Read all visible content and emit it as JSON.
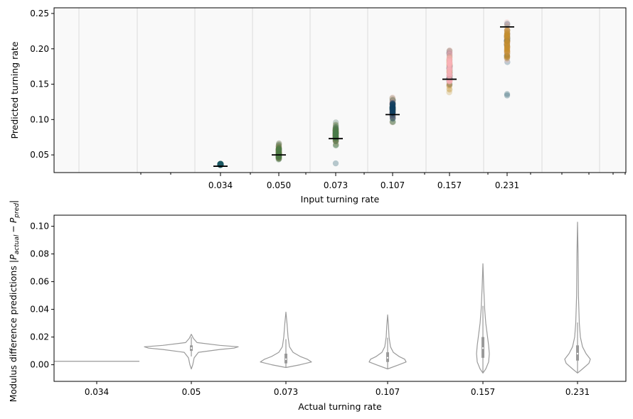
{
  "chart_data": [
    {
      "type": "scatter",
      "xlabel": "Input turning rate",
      "ylabel": "Predicted turning rate",
      "ylim": [
        0.025,
        0.258
      ],
      "yticks": [
        "0.05",
        "0.10",
        "0.15",
        "0.20",
        "0.25"
      ],
      "ytick_values": [
        0.05,
        0.1,
        0.15,
        0.2,
        0.25
      ],
      "categories": [
        "0.034",
        "0.050",
        "0.073",
        "0.107",
        "0.157",
        "0.231"
      ],
      "background": "#f9f9f9",
      "grid": "vertical",
      "medians": [
        0.034,
        0.05,
        0.073,
        0.107,
        0.157,
        0.231
      ],
      "clusters": [
        {
          "x": "0.034",
          "y_min": 0.035,
          "y_max": 0.038,
          "outliers": [],
          "colors": [
            "#1d5a66",
            "#2a6a62"
          ]
        },
        {
          "x": "0.050",
          "y_min": 0.036,
          "y_max": 0.07,
          "outliers": [],
          "colors": [
            "#4e7a45",
            "#e4956a",
            "#3f7252"
          ]
        },
        {
          "x": "0.073",
          "y_min": 0.06,
          "y_max": 0.099,
          "outliers": [
            0.038
          ],
          "colors": [
            "#4a7a4a",
            "#e8a36e",
            "#3f6a55"
          ]
        },
        {
          "x": "0.107",
          "y_min": 0.087,
          "y_max": 0.14,
          "outliers": [],
          "colors": [
            "#10405f",
            "#3e7a4b",
            "#f5b0a8"
          ]
        },
        {
          "x": "0.157",
          "y_min": 0.116,
          "y_max": 0.224,
          "outliers": [],
          "colors": [
            "#fbb3b8",
            "#123f5c",
            "#c79a3e"
          ]
        },
        {
          "x": "0.231",
          "y_min": 0.17,
          "y_max": 0.248,
          "outliers": [
            0.134,
            0.136
          ],
          "colors": [
            "#c38d2c",
            "#f7b6b4",
            "#1d4f6a"
          ]
        }
      ]
    },
    {
      "type": "violin",
      "xlabel": "Actual turning rate",
      "ylabel": "Modulus difference predictions |P_actual − P_pred|",
      "ylabel_main": "Modulus difference predictions",
      "ylabel_abs_open": "|",
      "ylabel_P": "P",
      "ylabel_sub_actual": "actual",
      "ylabel_minus": "−",
      "ylabel_sub_pred": "pred",
      "ylabel_abs_close": "|",
      "ylim": [
        -0.012,
        0.108
      ],
      "yticks": [
        "0.00",
        "0.02",
        "0.04",
        "0.06",
        "0.08",
        "0.10"
      ],
      "ytick_values": [
        0.0,
        0.02,
        0.04,
        0.06,
        0.08,
        0.1
      ],
      "categories": [
        "0.034",
        "0.05",
        "0.073",
        "0.107",
        "0.157",
        "0.231"
      ],
      "color": "#9a9a9a",
      "violins": [
        {
          "category": "0.034",
          "min": 0.0025,
          "max": 0.0025,
          "q1": 0.0025,
          "median": 0.0025,
          "q3": 0.0025
        },
        {
          "category": "0.05",
          "min": -0.003,
          "max": 0.022,
          "q1": 0.01,
          "median": 0.012,
          "q3": 0.014
        },
        {
          "category": "0.073",
          "min": -0.002,
          "max": 0.038,
          "q1": 0.001,
          "median": 0.004,
          "q3": 0.008
        },
        {
          "category": "0.107",
          "min": -0.003,
          "max": 0.036,
          "q1": 0.002,
          "median": 0.005,
          "q3": 0.009
        },
        {
          "category": "0.157",
          "min": -0.006,
          "max": 0.073,
          "q1": 0.005,
          "median": 0.012,
          "q3": 0.02
        },
        {
          "category": "0.231",
          "min": -0.006,
          "max": 0.103,
          "q1": 0.003,
          "median": 0.008,
          "q3": 0.014
        }
      ]
    }
  ]
}
